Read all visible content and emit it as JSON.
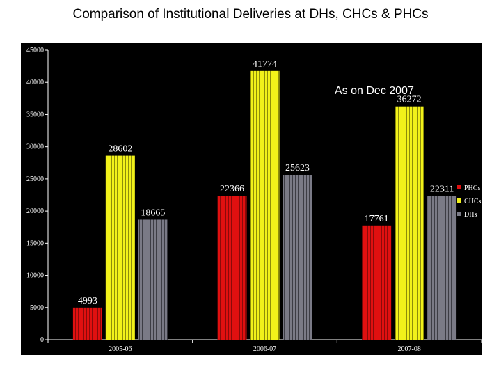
{
  "page": {
    "title": "Comparison of Institutional Deliveries at DHs, CHCs & PHCs"
  },
  "chart_data": {
    "type": "bar",
    "title": "Comparison of Institutional Deliveries at DHs, CHCs & PHCs",
    "categories": [
      "2005-06",
      "2006-07",
      "2007-08"
    ],
    "series": [
      {
        "name": "PHCs",
        "values": [
          4993,
          22366,
          17761
        ],
        "color": "#e01010"
      },
      {
        "name": "CHCs",
        "values": [
          28602,
          41774,
          36272
        ],
        "color": "#f2f21a"
      },
      {
        "name": "DHs",
        "values": [
          18665,
          25623,
          22311
        ],
        "color": "#7a7a86"
      }
    ],
    "data_labels": {
      "PHCs": [
        "4993",
        "22366",
        "17761"
      ],
      "CHCs": [
        "28602",
        "41774",
        "36272"
      ],
      "DHs": [
        "18665",
        "25623",
        "22311"
      ]
    },
    "ylim": [
      0,
      45000
    ],
    "yticks": [
      0,
      5000,
      10000,
      15000,
      20000,
      25000,
      30000,
      35000,
      40000,
      45000
    ],
    "ytick_labels": [
      "0",
      "5000",
      "10000",
      "15000",
      "20000",
      "25000",
      "30000",
      "35000",
      "40000",
      "45000"
    ],
    "grid": false,
    "legend_position": "right",
    "annotation": "As on Dec 2007",
    "background": "#000000"
  }
}
